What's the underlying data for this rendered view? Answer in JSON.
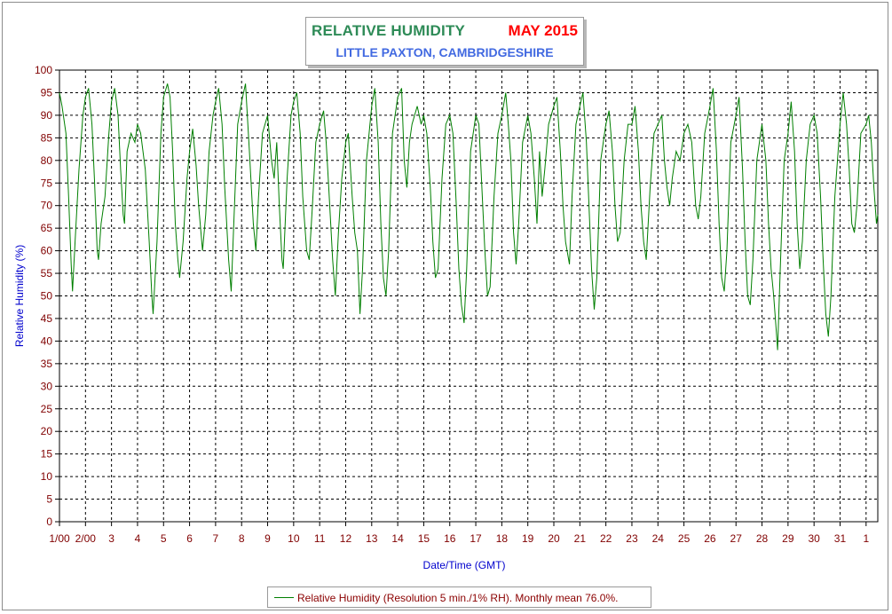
{
  "chart_data": {
    "type": "line",
    "title": "RELATIVE HUMIDITY",
    "title_month": "MAY 2015",
    "subtitle": "LITTLE PAXTON, CAMBRIDGESHIRE",
    "xlabel": "Date/Time (GMT)",
    "ylabel": "Relative Humidity (%)",
    "ylim": [
      0,
      100
    ],
    "xlim": [
      1,
      32.45
    ],
    "y_ticks": [
      "0",
      "5",
      "10",
      "15",
      "20",
      "25",
      "30",
      "35",
      "40",
      "45",
      "50",
      "55",
      "60",
      "65",
      "70",
      "75",
      "80",
      "85",
      "90",
      "95",
      "100"
    ],
    "x_ticks": [
      {
        "day": 1,
        "label": "1/00"
      },
      {
        "day": 2,
        "label": "2/00"
      },
      {
        "day": 3,
        "label": "3"
      },
      {
        "day": 4,
        "label": "4"
      },
      {
        "day": 5,
        "label": "5"
      },
      {
        "day": 6,
        "label": "6"
      },
      {
        "day": 7,
        "label": "7"
      },
      {
        "day": 8,
        "label": "8"
      },
      {
        "day": 9,
        "label": "9"
      },
      {
        "day": 10,
        "label": "10"
      },
      {
        "day": 11,
        "label": "11"
      },
      {
        "day": 12,
        "label": "12"
      },
      {
        "day": 13,
        "label": "13"
      },
      {
        "day": 14,
        "label": "14"
      },
      {
        "day": 15,
        "label": "15"
      },
      {
        "day": 16,
        "label": "16"
      },
      {
        "day": 17,
        "label": "17"
      },
      {
        "day": 18,
        "label": "18"
      },
      {
        "day": 19,
        "label": "19"
      },
      {
        "day": 20,
        "label": "20"
      },
      {
        "day": 21,
        "label": "21"
      },
      {
        "day": 22,
        "label": "22"
      },
      {
        "day": 23,
        "label": "23"
      },
      {
        "day": 24,
        "label": "24"
      },
      {
        "day": 25,
        "label": "25"
      },
      {
        "day": 26,
        "label": "26"
      },
      {
        "day": 27,
        "label": "27"
      },
      {
        "day": 28,
        "label": "28"
      },
      {
        "day": 29,
        "label": "29"
      },
      {
        "day": 30,
        "label": "30"
      },
      {
        "day": 31,
        "label": "31"
      },
      {
        "day": 32,
        "label": "1"
      }
    ],
    "grid": true,
    "legend_position": "bottom",
    "series": [
      {
        "name": "Relative Humidity (Resolution 5 min./1% RH). Monthly mean 76.0%.",
        "color": "#007f00",
        "points": [
          [
            1.0,
            95
          ],
          [
            1.1,
            92
          ],
          [
            1.25,
            86
          ],
          [
            1.35,
            72
          ],
          [
            1.45,
            57
          ],
          [
            1.5,
            51
          ],
          [
            1.6,
            62
          ],
          [
            1.75,
            78
          ],
          [
            1.9,
            90
          ],
          [
            2.0,
            94
          ],
          [
            2.12,
            96
          ],
          [
            2.25,
            88
          ],
          [
            2.35,
            75
          ],
          [
            2.45,
            60
          ],
          [
            2.5,
            58
          ],
          [
            2.6,
            66
          ],
          [
            2.75,
            72
          ],
          [
            2.9,
            86
          ],
          [
            3.0,
            93
          ],
          [
            3.12,
            96
          ],
          [
            3.25,
            90
          ],
          [
            3.35,
            78
          ],
          [
            3.45,
            68
          ],
          [
            3.5,
            66
          ],
          [
            3.6,
            82
          ],
          [
            3.75,
            86
          ],
          [
            3.9,
            84
          ],
          [
            4.0,
            88
          ],
          [
            4.12,
            86
          ],
          [
            4.3,
            78
          ],
          [
            4.45,
            62
          ],
          [
            4.55,
            50
          ],
          [
            4.6,
            46
          ],
          [
            4.75,
            62
          ],
          [
            4.9,
            86
          ],
          [
            5.0,
            94
          ],
          [
            5.15,
            97
          ],
          [
            5.25,
            94
          ],
          [
            5.35,
            82
          ],
          [
            5.45,
            66
          ],
          [
            5.55,
            58
          ],
          [
            5.62,
            54
          ],
          [
            5.75,
            62
          ],
          [
            5.9,
            76
          ],
          [
            6.0,
            82
          ],
          [
            6.12,
            87
          ],
          [
            6.25,
            79
          ],
          [
            6.35,
            70
          ],
          [
            6.5,
            60
          ],
          [
            6.62,
            68
          ],
          [
            6.75,
            82
          ],
          [
            6.9,
            90
          ],
          [
            7.0,
            93
          ],
          [
            7.12,
            96
          ],
          [
            7.25,
            88
          ],
          [
            7.35,
            74
          ],
          [
            7.5,
            58
          ],
          [
            7.6,
            51
          ],
          [
            7.7,
            66
          ],
          [
            7.85,
            88
          ],
          [
            8.0,
            93
          ],
          [
            8.15,
            97
          ],
          [
            8.3,
            82
          ],
          [
            8.45,
            66
          ],
          [
            8.55,
            60
          ],
          [
            8.65,
            72
          ],
          [
            8.8,
            86
          ],
          [
            9.0,
            90
          ],
          [
            9.15,
            80
          ],
          [
            9.25,
            76
          ],
          [
            9.35,
            84
          ],
          [
            9.45,
            70
          ],
          [
            9.55,
            58
          ],
          [
            9.6,
            56
          ],
          [
            9.75,
            76
          ],
          [
            9.9,
            90
          ],
          [
            10.0,
            93
          ],
          [
            10.12,
            95
          ],
          [
            10.25,
            86
          ],
          [
            10.35,
            72
          ],
          [
            10.5,
            60
          ],
          [
            10.6,
            58
          ],
          [
            10.72,
            70
          ],
          [
            10.85,
            84
          ],
          [
            11.0,
            88
          ],
          [
            11.15,
            91
          ],
          [
            11.25,
            84
          ],
          [
            11.35,
            74
          ],
          [
            11.5,
            58
          ],
          [
            11.6,
            50
          ],
          [
            11.72,
            64
          ],
          [
            11.85,
            76
          ],
          [
            12.0,
            84
          ],
          [
            12.1,
            86
          ],
          [
            12.25,
            72
          ],
          [
            12.35,
            64
          ],
          [
            12.45,
            60
          ],
          [
            12.55,
            46
          ],
          [
            12.65,
            56
          ],
          [
            12.8,
            80
          ],
          [
            13.0,
            92
          ],
          [
            13.12,
            96
          ],
          [
            13.25,
            84
          ],
          [
            13.35,
            66
          ],
          [
            13.45,
            54
          ],
          [
            13.55,
            50
          ],
          [
            13.65,
            60
          ],
          [
            13.8,
            86
          ],
          [
            14.0,
            94
          ],
          [
            14.15,
            96
          ],
          [
            14.25,
            80
          ],
          [
            14.35,
            74
          ],
          [
            14.45,
            84
          ],
          [
            14.55,
            88
          ],
          [
            14.75,
            92
          ],
          [
            14.9,
            88
          ],
          [
            15.0,
            90
          ],
          [
            15.12,
            86
          ],
          [
            15.25,
            74
          ],
          [
            15.35,
            62
          ],
          [
            15.45,
            54
          ],
          [
            15.55,
            56
          ],
          [
            15.7,
            76
          ],
          [
            15.85,
            88
          ],
          [
            16.0,
            90
          ],
          [
            16.12,
            86
          ],
          [
            16.25,
            70
          ],
          [
            16.35,
            56
          ],
          [
            16.45,
            48
          ],
          [
            16.55,
            44
          ],
          [
            16.65,
            56
          ],
          [
            16.8,
            82
          ],
          [
            17.0,
            90
          ],
          [
            17.12,
            88
          ],
          [
            17.25,
            72
          ],
          [
            17.35,
            60
          ],
          [
            17.45,
            50
          ],
          [
            17.55,
            52
          ],
          [
            17.7,
            72
          ],
          [
            17.85,
            86
          ],
          [
            18.0,
            90
          ],
          [
            18.15,
            95
          ],
          [
            18.25,
            88
          ],
          [
            18.35,
            80
          ],
          [
            18.45,
            64
          ],
          [
            18.55,
            57
          ],
          [
            18.65,
            66
          ],
          [
            18.8,
            84
          ],
          [
            19.0,
            90
          ],
          [
            19.12,
            86
          ],
          [
            19.25,
            76
          ],
          [
            19.35,
            66
          ],
          [
            19.45,
            82
          ],
          [
            19.55,
            72
          ],
          [
            19.65,
            78
          ],
          [
            19.8,
            88
          ],
          [
            20.0,
            92
          ],
          [
            20.12,
            94
          ],
          [
            20.25,
            82
          ],
          [
            20.35,
            70
          ],
          [
            20.45,
            62
          ],
          [
            20.6,
            57
          ],
          [
            20.7,
            72
          ],
          [
            20.85,
            88
          ],
          [
            21.0,
            92
          ],
          [
            21.12,
            95
          ],
          [
            21.25,
            84
          ],
          [
            21.35,
            70
          ],
          [
            21.45,
            56
          ],
          [
            21.55,
            47
          ],
          [
            21.65,
            54
          ],
          [
            21.8,
            80
          ],
          [
            22.0,
            88
          ],
          [
            22.12,
            91
          ],
          [
            22.25,
            82
          ],
          [
            22.35,
            70
          ],
          [
            22.45,
            62
          ],
          [
            22.55,
            64
          ],
          [
            22.7,
            80
          ],
          [
            22.85,
            88
          ],
          [
            23.0,
            88
          ],
          [
            23.12,
            92
          ],
          [
            23.25,
            82
          ],
          [
            23.35,
            70
          ],
          [
            23.45,
            62
          ],
          [
            23.55,
            58
          ],
          [
            23.7,
            74
          ],
          [
            23.85,
            86
          ],
          [
            24.0,
            88
          ],
          [
            24.15,
            90
          ],
          [
            24.25,
            80
          ],
          [
            24.35,
            74
          ],
          [
            24.45,
            70
          ],
          [
            24.55,
            76
          ],
          [
            24.7,
            82
          ],
          [
            24.85,
            80
          ],
          [
            25.0,
            86
          ],
          [
            25.15,
            88
          ],
          [
            25.3,
            84
          ],
          [
            25.45,
            70
          ],
          [
            25.55,
            67
          ],
          [
            25.65,
            72
          ],
          [
            25.8,
            86
          ],
          [
            26.0,
            92
          ],
          [
            26.12,
            96
          ],
          [
            26.25,
            82
          ],
          [
            26.35,
            66
          ],
          [
            26.45,
            54
          ],
          [
            26.55,
            51
          ],
          [
            26.65,
            60
          ],
          [
            26.8,
            84
          ],
          [
            27.0,
            90
          ],
          [
            27.12,
            94
          ],
          [
            27.25,
            78
          ],
          [
            27.35,
            62
          ],
          [
            27.45,
            50
          ],
          [
            27.55,
            48
          ],
          [
            27.65,
            58
          ],
          [
            27.8,
            80
          ],
          [
            28.0,
            88
          ],
          [
            28.15,
            80
          ],
          [
            28.25,
            66
          ],
          [
            28.35,
            56
          ],
          [
            28.45,
            50
          ],
          [
            28.55,
            42
          ],
          [
            28.6,
            38
          ],
          [
            28.7,
            56
          ],
          [
            28.85,
            80
          ],
          [
            29.0,
            86
          ],
          [
            29.12,
            93
          ],
          [
            29.25,
            82
          ],
          [
            29.35,
            66
          ],
          [
            29.45,
            56
          ],
          [
            29.55,
            62
          ],
          [
            29.7,
            80
          ],
          [
            29.85,
            88
          ],
          [
            30.0,
            90
          ],
          [
            30.12,
            86
          ],
          [
            30.25,
            72
          ],
          [
            30.35,
            58
          ],
          [
            30.45,
            46
          ],
          [
            30.55,
            41
          ],
          [
            30.65,
            50
          ],
          [
            30.8,
            72
          ],
          [
            31.0,
            88
          ],
          [
            31.12,
            95
          ],
          [
            31.25,
            88
          ],
          [
            31.35,
            78
          ],
          [
            31.45,
            66
          ],
          [
            31.55,
            64
          ],
          [
            31.65,
            70
          ],
          [
            31.8,
            86
          ],
          [
            32.0,
            88
          ],
          [
            32.1,
            90
          ],
          [
            32.2,
            84
          ],
          [
            32.3,
            74
          ],
          [
            32.4,
            66
          ],
          [
            32.45,
            68
          ]
        ]
      }
    ]
  },
  "legend": {
    "label": "Relative Humidity (Resolution 5 min./1% RH). Monthly mean 76.0%."
  }
}
